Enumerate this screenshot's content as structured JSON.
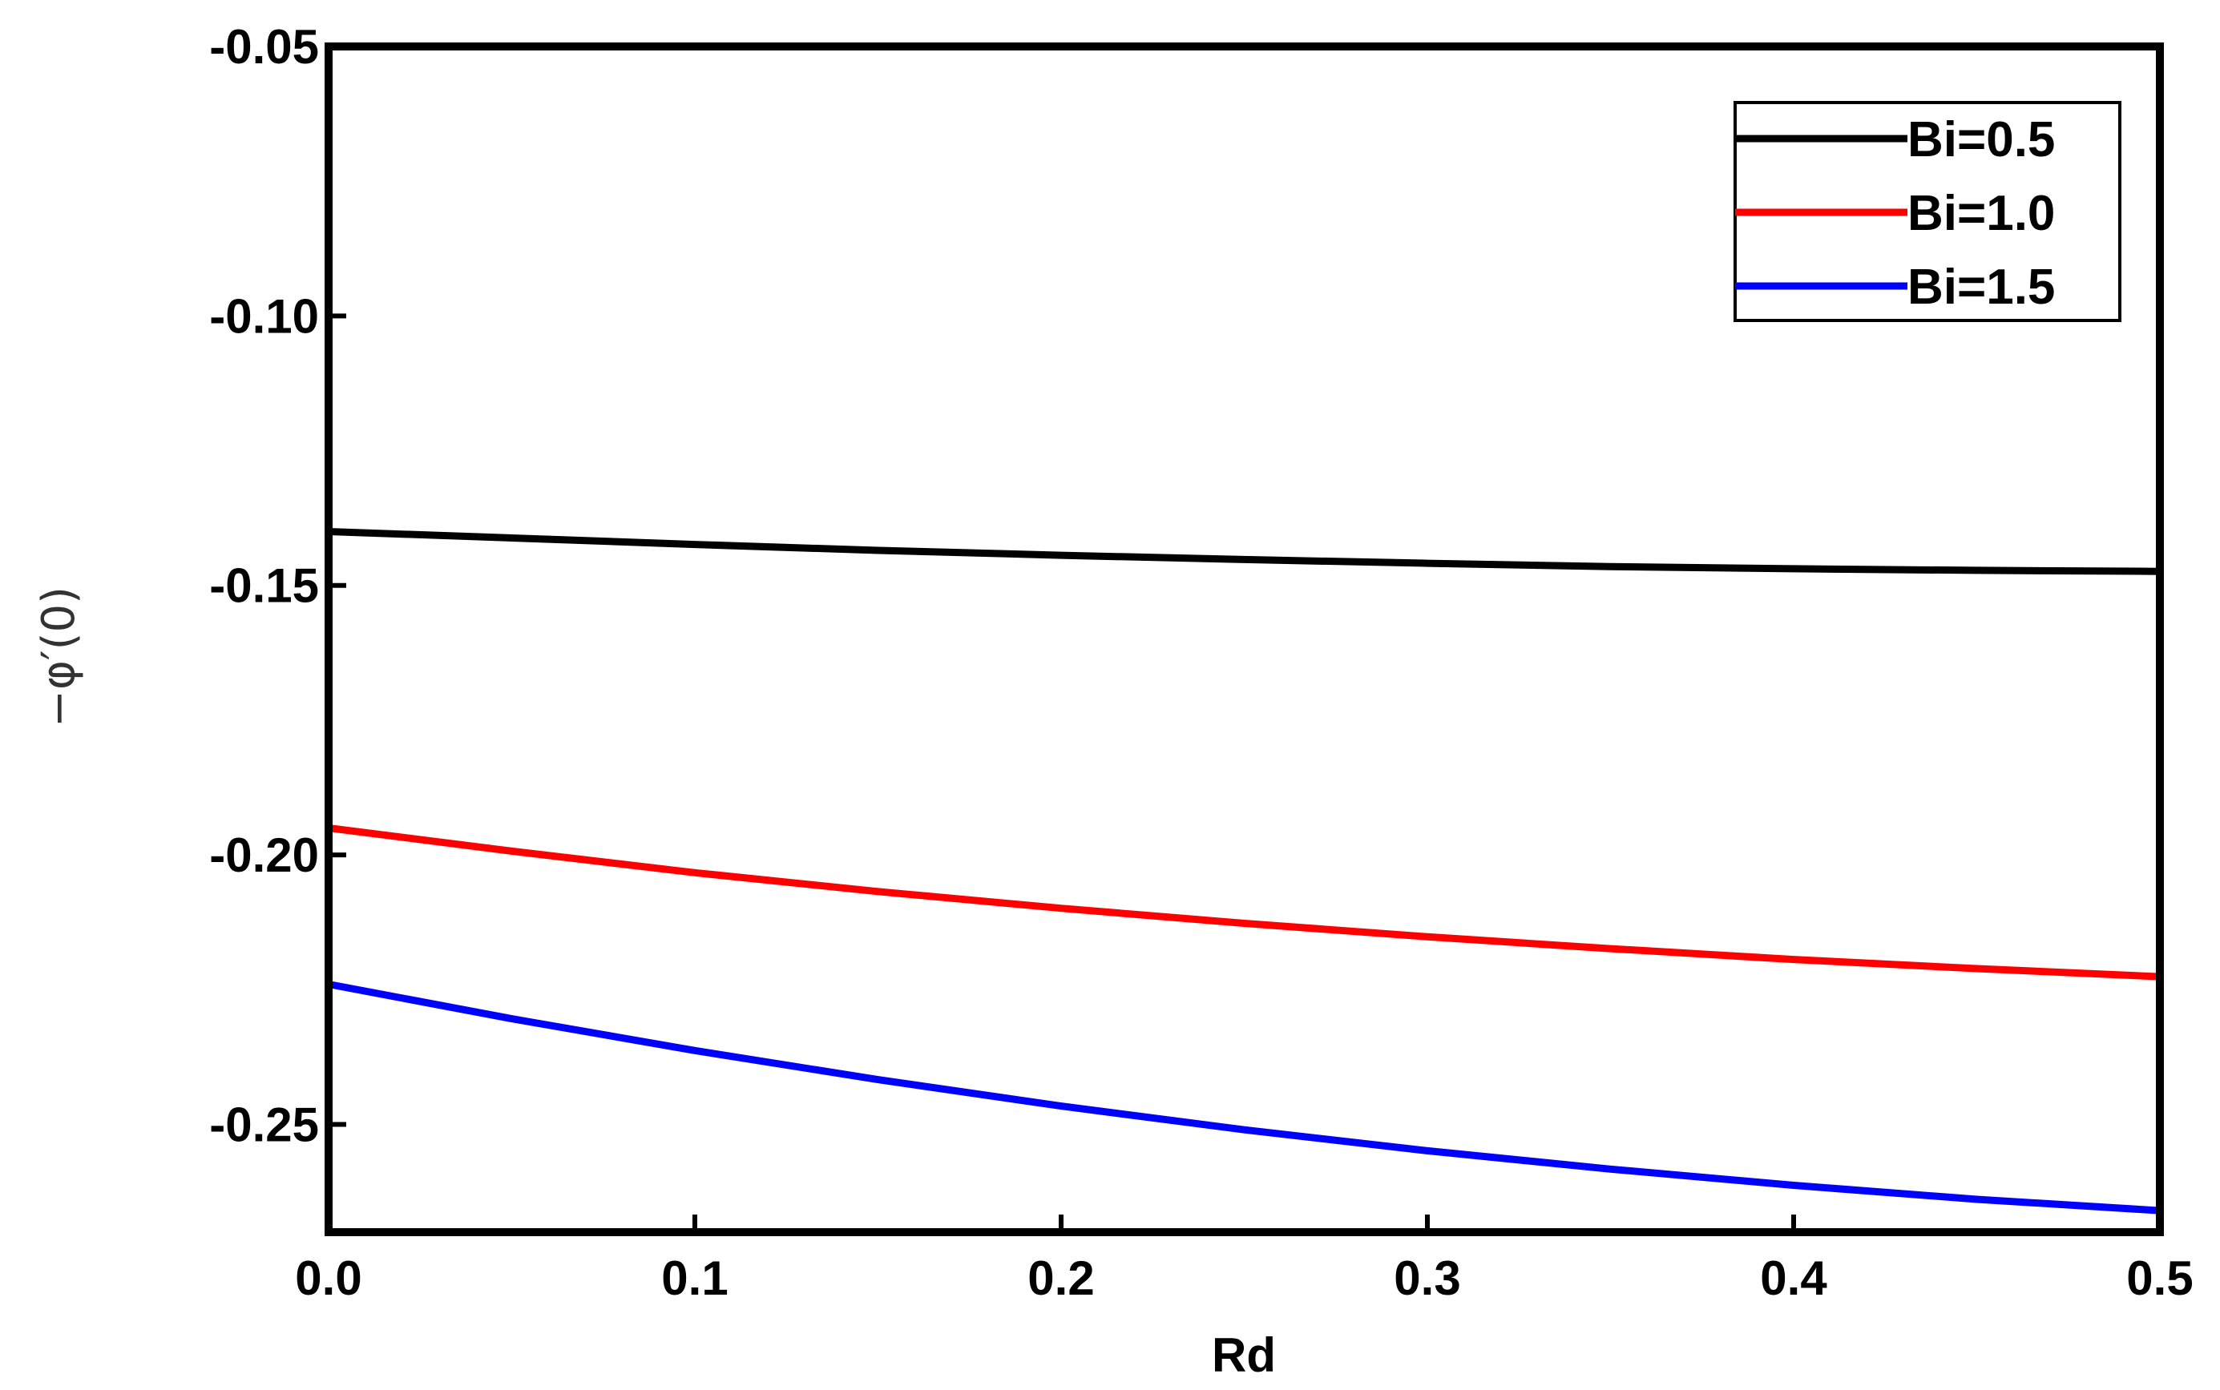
{
  "chart_data": {
    "type": "line",
    "xlabel": "Rd",
    "ylabel": "−φ′(0)",
    "xlim": [
      0.0,
      0.5
    ],
    "ylim": [
      -0.27,
      -0.05
    ],
    "x_ticks": [
      0.0,
      0.1,
      0.2,
      0.3,
      0.4,
      0.5
    ],
    "x_tick_labels": [
      "0.0",
      "0.1",
      "0.2",
      "0.3",
      "0.4",
      "0.5"
    ],
    "y_ticks": [
      -0.05,
      -0.1,
      -0.15,
      -0.2,
      -0.25
    ],
    "y_tick_labels": [
      "-0.05",
      "-0.10",
      "-0.15",
      "-0.20",
      "-0.25"
    ],
    "grid": false,
    "legend_position": "top-right",
    "x": [
      0.0,
      0.05,
      0.1,
      0.15,
      0.2,
      0.25,
      0.3,
      0.35,
      0.4,
      0.45,
      0.5
    ],
    "series": [
      {
        "name": "Bi=0.5",
        "color": "#000000",
        "values": [
          -0.14,
          -0.1412,
          -0.1424,
          -0.1435,
          -0.1444,
          -0.1452,
          -0.1459,
          -0.1465,
          -0.1469,
          -0.1472,
          -0.1474
        ]
      },
      {
        "name": "Bi=1.0",
        "color": "#ff0000",
        "values": [
          -0.195,
          -0.1993,
          -0.2033,
          -0.2068,
          -0.2099,
          -0.2127,
          -0.2152,
          -0.2174,
          -0.2194,
          -0.2211,
          -0.2226
        ]
      },
      {
        "name": "Bi=1.5",
        "color": "#0000ff",
        "values": [
          -0.224,
          -0.2304,
          -0.2363,
          -0.2417,
          -0.2466,
          -0.251,
          -0.2549,
          -0.2583,
          -0.2613,
          -0.2639,
          -0.266
        ]
      }
    ]
  }
}
